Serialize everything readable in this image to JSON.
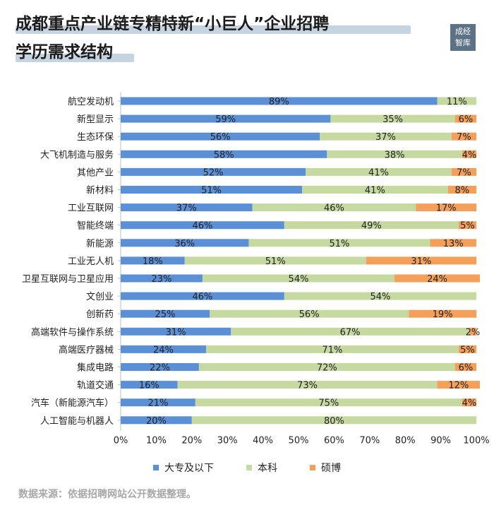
{
  "title": {
    "line1": "成都重点产业链专精特新“小巨人”企业招聘",
    "line2": "学历需求结构"
  },
  "logo": {
    "line1": "成经",
    "line2": "智库"
  },
  "source": "数据来源：依据招聘网站公开数据整理。",
  "colors": {
    "大专及以下": "#5b8fd6",
    "本科": "#c5d9a0",
    "硕博": "#f5a05a"
  },
  "chart_data": {
    "type": "bar",
    "orientation": "horizontal",
    "stacked": true,
    "categories": [
      "航空发动机",
      "新型显示",
      "生态环保",
      "大飞机制造与服务",
      "其他产业",
      "新材料",
      "工业互联网",
      "智能终端",
      "新能源",
      "工业无人机",
      "卫星互联网与卫星应用",
      "文创业",
      "创新药",
      "高端软件与操作系统",
      "高端医疗器械",
      "集成电路",
      "轨道交通",
      "汽车（新能源汽车）",
      "人工智能与机器人"
    ],
    "series": [
      {
        "name": "大专及以下",
        "values": [
          89,
          59,
          56,
          58,
          52,
          51,
          37,
          46,
          36,
          18,
          23,
          46,
          25,
          31,
          24,
          22,
          16,
          21,
          20
        ]
      },
      {
        "name": "本科",
        "values": [
          11,
          35,
          37,
          38,
          41,
          41,
          46,
          49,
          51,
          51,
          54,
          54,
          56,
          67,
          71,
          72,
          73,
          75,
          80
        ]
      },
      {
        "name": "硕博",
        "values": [
          0,
          6,
          7,
          4,
          7,
          8,
          17,
          5,
          13,
          31,
          24,
          0,
          19,
          2,
          5,
          6,
          12,
          4,
          0
        ]
      }
    ],
    "value_labels": [
      [
        "89%",
        "11%",
        ""
      ],
      [
        "59%",
        "35%",
        "6%"
      ],
      [
        "56%",
        "37%",
        "7%"
      ],
      [
        "58%",
        "38%",
        "4%"
      ],
      [
        "52%",
        "41%",
        "7%"
      ],
      [
        "51%",
        "41%",
        "8%"
      ],
      [
        "37%",
        "46%",
        "17%"
      ],
      [
        "46%",
        "49%",
        "5%"
      ],
      [
        "36%",
        "51%",
        "13%"
      ],
      [
        "18%",
        "51%",
        "31%"
      ],
      [
        "23%",
        "54%",
        "24%"
      ],
      [
        "46%",
        "54%",
        ""
      ],
      [
        "25%",
        "56%",
        "19%"
      ],
      [
        "31%",
        "67%",
        "2%"
      ],
      [
        "24%",
        "71%",
        "5%"
      ],
      [
        "22%",
        "72%",
        "6%"
      ],
      [
        "16%",
        "73%",
        "12%"
      ],
      [
        "21%",
        "75%",
        "4%"
      ],
      [
        "20%",
        "80%",
        ""
      ]
    ],
    "x_ticks": [
      "0%",
      "10%",
      "20%",
      "30%",
      "40%",
      "50%",
      "60%",
      "70%",
      "80%",
      "90%",
      "100%"
    ],
    "xlim": [
      0,
      100
    ],
    "legend_position": "bottom",
    "grid": false
  }
}
